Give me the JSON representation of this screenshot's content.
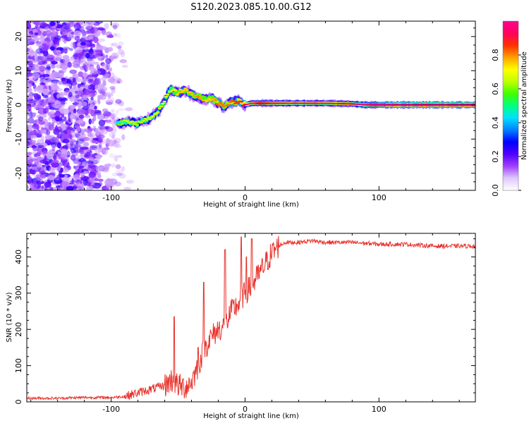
{
  "figure": {
    "title": "S120.2023.085.10.00.G12"
  },
  "chart_data": [
    {
      "type": "heatmap",
      "xlabel": "Height of straight line (km)",
      "ylabel": "Frequency (Hz)",
      "xlim": [
        -163,
        172
      ],
      "ylim": [
        -25,
        24.5
      ],
      "x_ticks": [
        -100,
        0,
        100
      ],
      "x_tick_labels": [
        "-100",
        "0",
        "100"
      ],
      "y_ticks": [
        -20,
        -10,
        0,
        10,
        20
      ],
      "y_tick_labels": [
        "-20",
        "-10",
        "0",
        "10",
        "20"
      ],
      "colorbar": {
        "label": "Normalized spectral amplitude",
        "range": [
          0,
          1
        ],
        "ticks": [
          0.0,
          0.2,
          0.4,
          0.6,
          0.8
        ],
        "tick_labels": [
          "0.0",
          "0.2",
          "0.4",
          "0.6",
          "0.8"
        ],
        "colormap": [
          "#ffffff",
          "#e0c8ff",
          "#a040ff",
          "#5000ff",
          "#0000ff",
          "#0080ff",
          "#00e0ff",
          "#00ff80",
          "#40ff00",
          "#c0ff00",
          "#ffff00",
          "#ffa000",
          "#ff3000",
          "#ff0060",
          "#ff0090"
        ]
      },
      "ridge": [
        {
          "x": -95,
          "y": -5.5,
          "a": 0.35
        },
        {
          "x": -88,
          "y": -5.0,
          "a": 0.4
        },
        {
          "x": -80,
          "y": -5.5,
          "a": 0.38
        },
        {
          "x": -72,
          "y": -4.0,
          "a": 0.4
        },
        {
          "x": -65,
          "y": -2.0,
          "a": 0.4
        },
        {
          "x": -60,
          "y": 1.0,
          "a": 0.42
        },
        {
          "x": -56,
          "y": 4.5,
          "a": 0.4
        },
        {
          "x": -50,
          "y": 3.5,
          "a": 0.45
        },
        {
          "x": -45,
          "y": 4.5,
          "a": 0.45
        },
        {
          "x": -40,
          "y": 3.0,
          "a": 0.45
        },
        {
          "x": -35,
          "y": 2.5,
          "a": 0.48
        },
        {
          "x": -30,
          "y": 1.5,
          "a": 0.45
        },
        {
          "x": -25,
          "y": 2.0,
          "a": 0.45
        },
        {
          "x": -20,
          "y": 0.5,
          "a": 0.5
        },
        {
          "x": -15,
          "y": -0.5,
          "a": 0.48
        },
        {
          "x": -10,
          "y": 1.0,
          "a": 0.5
        },
        {
          "x": -5,
          "y": 1.0,
          "a": 0.52
        },
        {
          "x": 0,
          "y": 0.0,
          "a": 0.55
        },
        {
          "x": 5,
          "y": 0.5,
          "a": 0.6
        },
        {
          "x": 10,
          "y": 0.5,
          "a": 0.7
        },
        {
          "x": 20,
          "y": 0.5,
          "a": 0.62
        },
        {
          "x": 30,
          "y": 0.5,
          "a": 0.6
        },
        {
          "x": 40,
          "y": 0.5,
          "a": 0.58
        },
        {
          "x": 50,
          "y": 0.5,
          "a": 0.6
        },
        {
          "x": 60,
          "y": 0.5,
          "a": 0.58
        },
        {
          "x": 70,
          "y": 0.4,
          "a": 0.6
        },
        {
          "x": 80,
          "y": 0.3,
          "a": 0.62
        },
        {
          "x": 90,
          "y": 0.0,
          "a": 0.6
        },
        {
          "x": 100,
          "y": 0.0,
          "a": 0.8
        },
        {
          "x": 110,
          "y": 0.0,
          "a": 0.9
        },
        {
          "x": 120,
          "y": 0.0,
          "a": 0.95
        },
        {
          "x": 130,
          "y": 0.0,
          "a": 1.0
        },
        {
          "x": 140,
          "y": 0.0,
          "a": 1.0
        },
        {
          "x": 150,
          "y": 0.0,
          "a": 1.0
        },
        {
          "x": 160,
          "y": 0.0,
          "a": 1.0
        },
        {
          "x": 172,
          "y": 0.0,
          "a": 1.0
        }
      ],
      "noise_region": {
        "x": [
          -163,
          -85
        ],
        "y": [
          -25,
          24.5
        ],
        "max_amplitude": 0.25
      }
    },
    {
      "type": "line",
      "xlabel": "Height of straight line (km)",
      "ylabel": "SNR (10 * v/v)",
      "xlim": [
        -163,
        172
      ],
      "ylim": [
        0,
        465
      ],
      "x_ticks": [
        -100,
        0,
        100
      ],
      "x_tick_labels": [
        "-100",
        "0",
        "100"
      ],
      "y_ticks": [
        0,
        100,
        200,
        300,
        400
      ],
      "y_tick_labels": [
        "0",
        "100",
        "200",
        "300",
        "400"
      ],
      "color": "#e8322c",
      "x": [
        -163,
        -140,
        -120,
        -100,
        -90,
        -80,
        -70,
        -60,
        -55,
        -50,
        -45,
        -40,
        -35,
        -30,
        -25,
        -20,
        -15,
        -10,
        -5,
        0,
        5,
        10,
        15,
        20,
        25,
        30,
        40,
        50,
        60,
        80,
        100,
        120,
        140,
        160,
        172
      ],
      "y": [
        10,
        10,
        12,
        12,
        15,
        25,
        35,
        45,
        60,
        45,
        40,
        55,
        100,
        150,
        180,
        200,
        210,
        250,
        270,
        300,
        320,
        350,
        380,
        410,
        430,
        440,
        440,
        445,
        440,
        440,
        435,
        435,
        430,
        430,
        430
      ],
      "spikes": [
        {
          "x": -53,
          "y": 235
        },
        {
          "x": -35,
          "y": 150
        },
        {
          "x": -31,
          "y": 330
        },
        {
          "x": -15,
          "y": 420
        },
        {
          "x": -3,
          "y": 455
        },
        {
          "x": 1,
          "y": 400
        },
        {
          "x": 5,
          "y": 450
        }
      ],
      "noise_amplitude": 15
    }
  ]
}
